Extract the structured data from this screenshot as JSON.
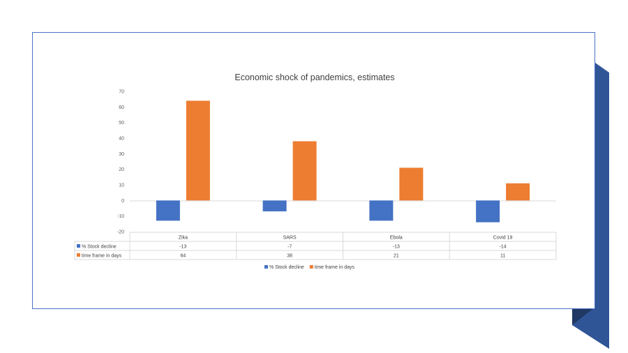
{
  "colors": {
    "series1": "#4472c4",
    "series2": "#ed7d31",
    "frame_border": "#4a72c4",
    "ribbon_main": "#2f5597",
    "ribbon_dark": "#203864"
  },
  "chart_data": {
    "type": "bar",
    "title": "Economic shock of pandemics, estimates",
    "categories": [
      "Zika",
      "SARS",
      "Ebola",
      "Covid 19"
    ],
    "series": [
      {
        "name": "% Stock decline",
        "values": [
          -13,
          -7,
          -13,
          -14
        ]
      },
      {
        "name": "time frame in days",
        "values": [
          64,
          38,
          21,
          11
        ]
      }
    ],
    "ylim": [
      -20,
      70
    ],
    "yticks": [
      70,
      60,
      50,
      40,
      30,
      20,
      10,
      0,
      -10,
      -20
    ],
    "xlabel": "",
    "ylabel": "",
    "data_table": true,
    "legend_position": "bottom",
    "grid": false
  }
}
